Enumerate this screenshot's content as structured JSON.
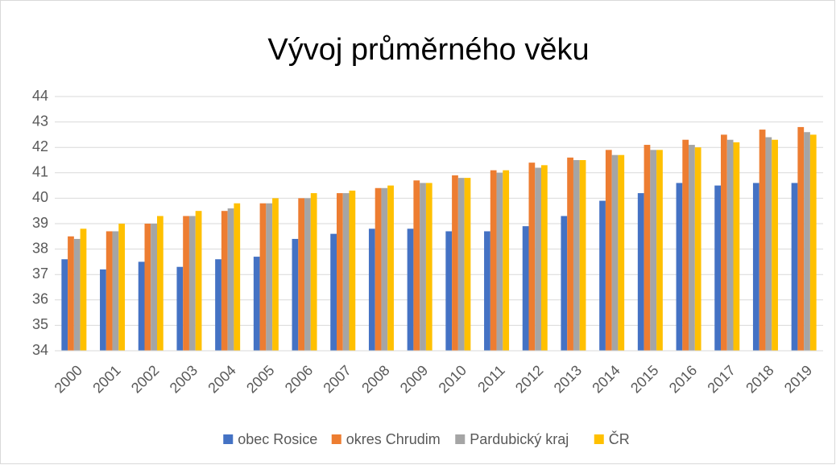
{
  "chart_data": {
    "type": "bar",
    "title": "Vývoj průměrného věku",
    "categories": [
      "2000",
      "2001",
      "2002",
      "2003",
      "2004",
      "2005",
      "2006",
      "2007",
      "2008",
      "2009",
      "2010",
      "2011",
      "2012",
      "2013",
      "2014",
      "2015",
      "2016",
      "2017",
      "2018",
      "2019"
    ],
    "series": [
      {
        "name": "obec Rosice",
        "color": "#4472c4",
        "values": [
          37.6,
          37.2,
          37.5,
          37.3,
          37.6,
          37.7,
          38.4,
          38.6,
          38.8,
          38.8,
          38.7,
          38.7,
          38.9,
          39.3,
          39.9,
          40.2,
          40.6,
          40.5,
          40.6,
          40.6
        ]
      },
      {
        "name": "okres Chrudim",
        "color": "#ed7d31",
        "values": [
          38.5,
          38.7,
          39.0,
          39.3,
          39.5,
          39.8,
          40.0,
          40.2,
          40.4,
          40.7,
          40.9,
          41.1,
          41.4,
          41.6,
          41.9,
          42.1,
          42.3,
          42.5,
          42.7,
          42.8
        ]
      },
      {
        "name": "Pardubický kraj",
        "color": "#a5a5a5",
        "values": [
          38.4,
          38.7,
          39.0,
          39.3,
          39.6,
          39.8,
          40.0,
          40.2,
          40.4,
          40.6,
          40.8,
          41.0,
          41.2,
          41.5,
          41.7,
          41.9,
          42.1,
          42.3,
          42.4,
          42.6
        ]
      },
      {
        "name": "ČR",
        "color": "#ffc000",
        "values": [
          38.8,
          39.0,
          39.3,
          39.5,
          39.8,
          40.0,
          40.2,
          40.3,
          40.5,
          40.6,
          40.8,
          41.1,
          41.3,
          41.5,
          41.7,
          41.9,
          42.0,
          42.2,
          42.3,
          42.5
        ]
      }
    ],
    "ylim": [
      34,
      44
    ],
    "yticks": [
      34,
      35,
      36,
      37,
      38,
      39,
      40,
      41,
      42,
      43,
      44
    ],
    "grid": true,
    "legend": "bottom"
  }
}
